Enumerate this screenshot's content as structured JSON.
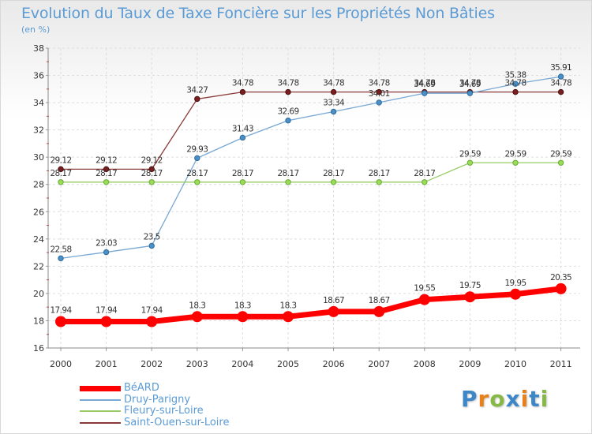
{
  "title": "Evolution du Taux de Taxe Foncière sur les Propriétés Non Bâties",
  "unit": "(en %)",
  "brand": {
    "letters": [
      {
        "ch": "P",
        "color": "#3d87c9"
      },
      {
        "ch": "r",
        "color": "#e8801c"
      },
      {
        "ch": "o",
        "color": "#86b845"
      },
      {
        "ch": "x",
        "color": "#3d87c9"
      },
      {
        "ch": "i",
        "color": "#e8801c"
      },
      {
        "ch": "t",
        "color": "#3d87c9"
      },
      {
        "ch": "i",
        "color": "#86b845"
      }
    ]
  },
  "chart_data": {
    "type": "line",
    "title": "Evolution du Taux de Taxe Foncière sur les Propriétés Non Bâties",
    "ylabel": "(en %)",
    "xlabel": "",
    "ylim": [
      16,
      38
    ],
    "yticks": [
      16,
      18,
      20,
      22,
      24,
      26,
      28,
      30,
      32,
      34,
      36,
      38
    ],
    "grid": true,
    "legend_position": "bottom-left",
    "x": [
      "2000",
      "2001",
      "2002",
      "2003",
      "2004",
      "2005",
      "2006",
      "2007",
      "2008",
      "2009",
      "2010",
      "2011"
    ],
    "series": [
      {
        "name": "BéARD",
        "color": "#ff0000",
        "values": [
          17.94,
          17.94,
          17.94,
          18.3,
          18.3,
          18.3,
          18.67,
          18.67,
          19.55,
          19.75,
          19.95,
          20.35
        ],
        "labels": [
          "17.94",
          "17.94",
          "17.94",
          "18.3",
          "18.3",
          "18.3",
          "18.67",
          "18.67",
          "19.55",
          "19.75",
          "19.95",
          "20.35"
        ]
      },
      {
        "name": "Druy-Parigny",
        "color": "#78a8d4",
        "values": [
          22.58,
          23.03,
          23.5,
          29.93,
          31.43,
          32.69,
          33.34,
          34.01,
          34.69,
          34.69,
          35.38,
          35.91
        ],
        "labels": [
          "22.58",
          "23.03",
          "23.5",
          "29.93",
          "31.43",
          "32.69",
          "33.34",
          "34.01",
          "34.69",
          "34.69",
          "35.38",
          "35.91"
        ]
      },
      {
        "name": "Fleury-sur-Loire",
        "color": "#99cc66",
        "values": [
          28.17,
          28.17,
          28.17,
          28.17,
          28.17,
          28.17,
          28.17,
          28.17,
          28.17,
          29.59,
          29.59,
          29.59
        ],
        "labels": [
          "28.17",
          "28.17",
          "28.17",
          "28.17",
          "28.17",
          "28.17",
          "28.17",
          "28.17",
          "28.17",
          "29.59",
          "29.59",
          "29.59"
        ]
      },
      {
        "name": "Saint-Ouen-sur-Loire",
        "color": "#8b3a3a",
        "values": [
          29.12,
          29.12,
          29.12,
          34.27,
          34.78,
          34.78,
          34.78,
          34.78,
          34.78,
          34.78,
          34.78,
          34.78
        ],
        "labels": [
          "29.12",
          "29.12",
          "29.12",
          "34.27",
          "34.78",
          "34.78",
          "34.78",
          "34.78",
          "34.78",
          "34.78",
          "34.78",
          "34.78"
        ]
      }
    ]
  }
}
